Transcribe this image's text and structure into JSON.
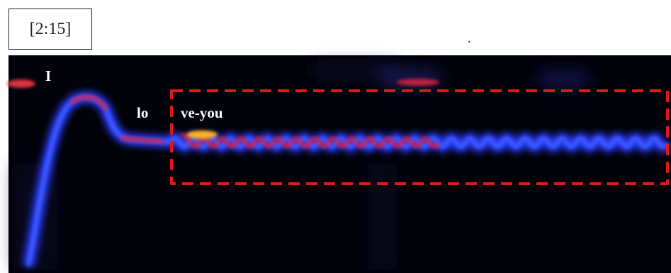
{
  "timestamp": "[2:15]",
  "stray_mark": ".",
  "lyrics": [
    "I",
    "lo",
    "ve-you"
  ]
}
